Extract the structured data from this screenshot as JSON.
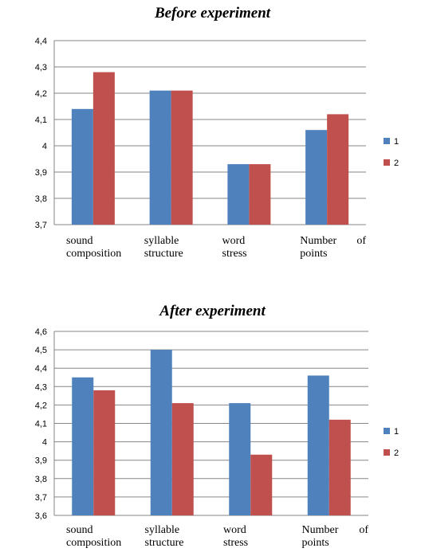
{
  "chart_data": [
    {
      "type": "bar",
      "title": "Before experiment",
      "categories": [
        [
          "sound",
          "composition"
        ],
        [
          "syllable",
          "structure"
        ],
        [
          "word",
          "stress"
        ],
        [
          "Number of",
          "points"
        ]
      ],
      "series": [
        {
          "name": "1",
          "color": "#4f81bd",
          "values": [
            4.14,
            4.21,
            3.93,
            4.06
          ]
        },
        {
          "name": "2",
          "color": "#c0504d",
          "values": [
            4.28,
            4.21,
            3.93,
            4.12
          ]
        }
      ],
      "ylim": [
        3.7,
        4.4
      ],
      "yticks": [
        "3,7",
        "3,8",
        "3,9",
        "4",
        "4,1",
        "4,2",
        "4,3",
        "4,4"
      ],
      "grid": true,
      "legend": "right"
    },
    {
      "type": "bar",
      "title": "After experiment",
      "categories": [
        [
          "sound",
          "composition"
        ],
        [
          "syllable",
          "structure"
        ],
        [
          "word",
          "stress"
        ],
        [
          "Number of",
          "points"
        ]
      ],
      "series": [
        {
          "name": "1",
          "color": "#4f81bd",
          "values": [
            4.35,
            4.5,
            4.21,
            4.36
          ]
        },
        {
          "name": "2",
          "color": "#c0504d",
          "values": [
            4.28,
            4.21,
            3.93,
            4.12
          ]
        }
      ],
      "ylim": [
        3.6,
        4.6
      ],
      "yticks": [
        "3,6",
        "3,7",
        "3,8",
        "3,9",
        "4",
        "4,1",
        "4,2",
        "4,3",
        "4,4",
        "4,5",
        "4,6"
      ],
      "grid": true,
      "legend": "right"
    }
  ]
}
